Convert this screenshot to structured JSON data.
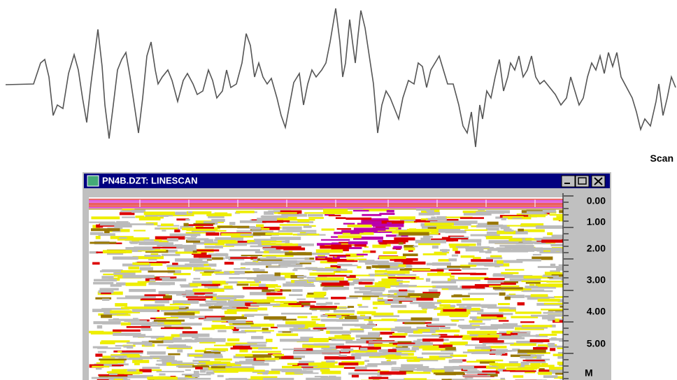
{
  "scan_label": "Scan",
  "window": {
    "title": "PN4B.DZT: LINESCAN",
    "depth_scale": {
      "labels": [
        "0.00",
        "1.00",
        "2.00",
        "3.00",
        "4.00",
        "5.00"
      ],
      "unit": "M"
    }
  }
}
